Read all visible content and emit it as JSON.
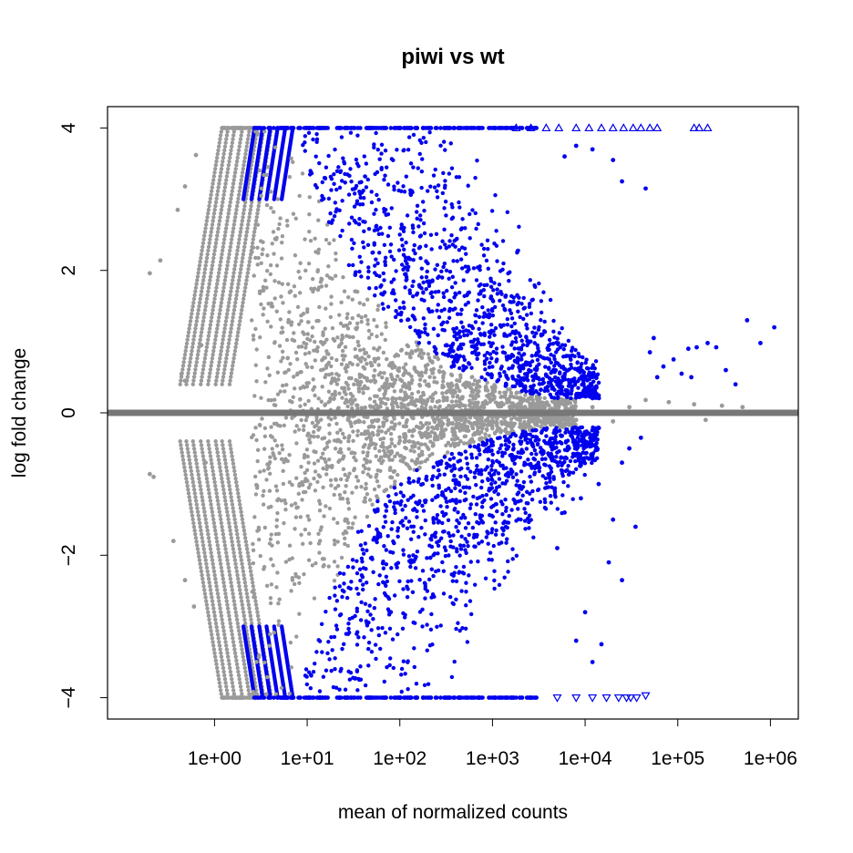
{
  "chart_data": {
    "type": "scatter",
    "title": "piwi vs wt",
    "xlabel": "mean of normalized counts",
    "ylabel": "log fold change",
    "x_scale": "log10",
    "xlim": [
      0.07,
      2000000
    ],
    "ylim": [
      -4.3,
      4.3
    ],
    "x_ticks": [
      1,
      10,
      100,
      1000,
      10000,
      100000,
      1000000
    ],
    "x_tick_labels": [
      "1e+00",
      "1e+01",
      "1e+02",
      "1e+03",
      "1e+04",
      "1e+05",
      "1e+06"
    ],
    "y_ticks": [
      -4,
      -2,
      0,
      2,
      4
    ],
    "y_tick_labels": [
      "−4",
      "−2",
      "0",
      "2",
      "4"
    ],
    "grid": false,
    "reference_line": 0,
    "colors": {
      "not_significant": "#9a9a9a",
      "significant": "#0000ee",
      "zero_line": "#777777"
    },
    "series": [
      {
        "color": "#9a9a9a",
        "marker": "circle",
        "points": [
          [
            0.2,
            1.96
          ],
          [
            0.26,
            2.14
          ],
          [
            0.4,
            2.85
          ],
          [
            0.48,
            3.18
          ],
          [
            0.63,
            3.62
          ],
          [
            0.2,
            -0.86
          ],
          [
            0.22,
            -0.9
          ],
          [
            0.36,
            -1.8
          ],
          [
            0.48,
            -2.35
          ],
          [
            0.6,
            -2.72
          ],
          [
            0.44,
            0.55
          ],
          [
            0.48,
            0.45
          ],
          [
            0.72,
            0.95
          ],
          [
            0.8,
            -0.7
          ],
          [
            3000,
            0.12
          ],
          [
            5000,
            0.1
          ],
          [
            8000,
            -0.1
          ],
          [
            12000,
            0.08
          ],
          [
            20000,
            -0.12
          ],
          [
            30000,
            0.08
          ],
          [
            45000,
            0.18
          ],
          [
            80000,
            0.15
          ],
          [
            150000,
            0.12
          ],
          [
            200000,
            -0.1
          ],
          [
            300000,
            0.1
          ],
          [
            500000,
            0.08
          ]
        ]
      },
      {
        "color": "#0000ee",
        "marker": "circle",
        "points": [
          [
            1100000,
            1.2
          ],
          [
            560000,
            1.3
          ],
          [
            780000,
            0.98
          ],
          [
            260000,
            0.92
          ],
          [
            210000,
            0.98
          ],
          [
            160000,
            0.92
          ],
          [
            130000,
            0.9
          ],
          [
            140000,
            0.5
          ],
          [
            330000,
            0.6
          ],
          [
            420000,
            0.4
          ],
          [
            110000,
            0.55
          ],
          [
            90000,
            0.75
          ],
          [
            70000,
            0.65
          ],
          [
            60000,
            0.5
          ],
          [
            50000,
            0.85
          ],
          [
            55000,
            1.05
          ],
          [
            45000,
            3.15
          ],
          [
            25000,
            3.25
          ],
          [
            20000,
            3.55
          ],
          [
            12000,
            3.7
          ],
          [
            8000,
            3.75
          ],
          [
            6000,
            3.6
          ],
          [
            40000,
            -0.35
          ],
          [
            30000,
            -0.5
          ],
          [
            25000,
            -0.7
          ],
          [
            35000,
            -1.6
          ],
          [
            25000,
            -2.35
          ],
          [
            18000,
            -2.1
          ],
          [
            15000,
            -3.25
          ],
          [
            12000,
            -3.5
          ],
          [
            10000,
            -2.8
          ],
          [
            8000,
            -3.2
          ],
          [
            20000,
            -1.5
          ],
          [
            14000,
            -1.0
          ],
          [
            9000,
            -1.2
          ],
          [
            6000,
            -1.4
          ],
          [
            5000,
            -1.9
          ]
        ]
      },
      {
        "color": "#0000ee",
        "marker": "triangle-up",
        "points": [
          [
            1800,
            4
          ],
          [
            2600,
            4
          ],
          [
            3800,
            4
          ],
          [
            5200,
            4
          ],
          [
            8000,
            4
          ],
          [
            11000,
            4
          ],
          [
            15000,
            4
          ],
          [
            20000,
            4
          ],
          [
            26000,
            4
          ],
          [
            33000,
            4
          ],
          [
            40000,
            4
          ],
          [
            50000,
            4
          ],
          [
            60000,
            4
          ],
          [
            150000,
            4
          ],
          [
            170000,
            4
          ],
          [
            210000,
            4
          ]
        ]
      },
      {
        "color": "#0000ee",
        "marker": "triangle-down",
        "points": [
          [
            5000,
            -4
          ],
          [
            8000,
            -4
          ],
          [
            12000,
            -4
          ],
          [
            17000,
            -4
          ],
          [
            23000,
            -4
          ],
          [
            28000,
            -4
          ],
          [
            31000,
            -4
          ],
          [
            36000,
            -4
          ],
          [
            45000,
            -3.97
          ]
        ]
      }
    ],
    "density_structure": {
      "grey_bands_per_side": 8,
      "grey_band_x_at_boundary": [
        1.2,
        1.4,
        1.65,
        2.0,
        2.4,
        2.9,
        3.4,
        4.1
      ],
      "blue_band_x_at_boundary": [
        2.7,
        3.3,
        4.0,
        4.8,
        5.8,
        7.0
      ],
      "significance_edge_positive": [
        [
          7,
          4
        ],
        [
          15,
          2.8
        ],
        [
          30,
          2.0
        ],
        [
          60,
          1.5
        ],
        [
          150,
          1.0
        ],
        [
          400,
          0.6
        ],
        [
          1000,
          0.42
        ],
        [
          2000,
          0.3
        ],
        [
          5000,
          0.2
        ]
      ],
      "significance_edge_negative": [
        [
          7,
          -4
        ],
        [
          15,
          -2.8
        ],
        [
          30,
          -1.8
        ],
        [
          60,
          -1.2
        ],
        [
          150,
          -0.8
        ],
        [
          400,
          -0.55
        ],
        [
          1000,
          -0.35
        ],
        [
          2000,
          -0.26
        ],
        [
          5000,
          -0.2
        ]
      ]
    }
  }
}
